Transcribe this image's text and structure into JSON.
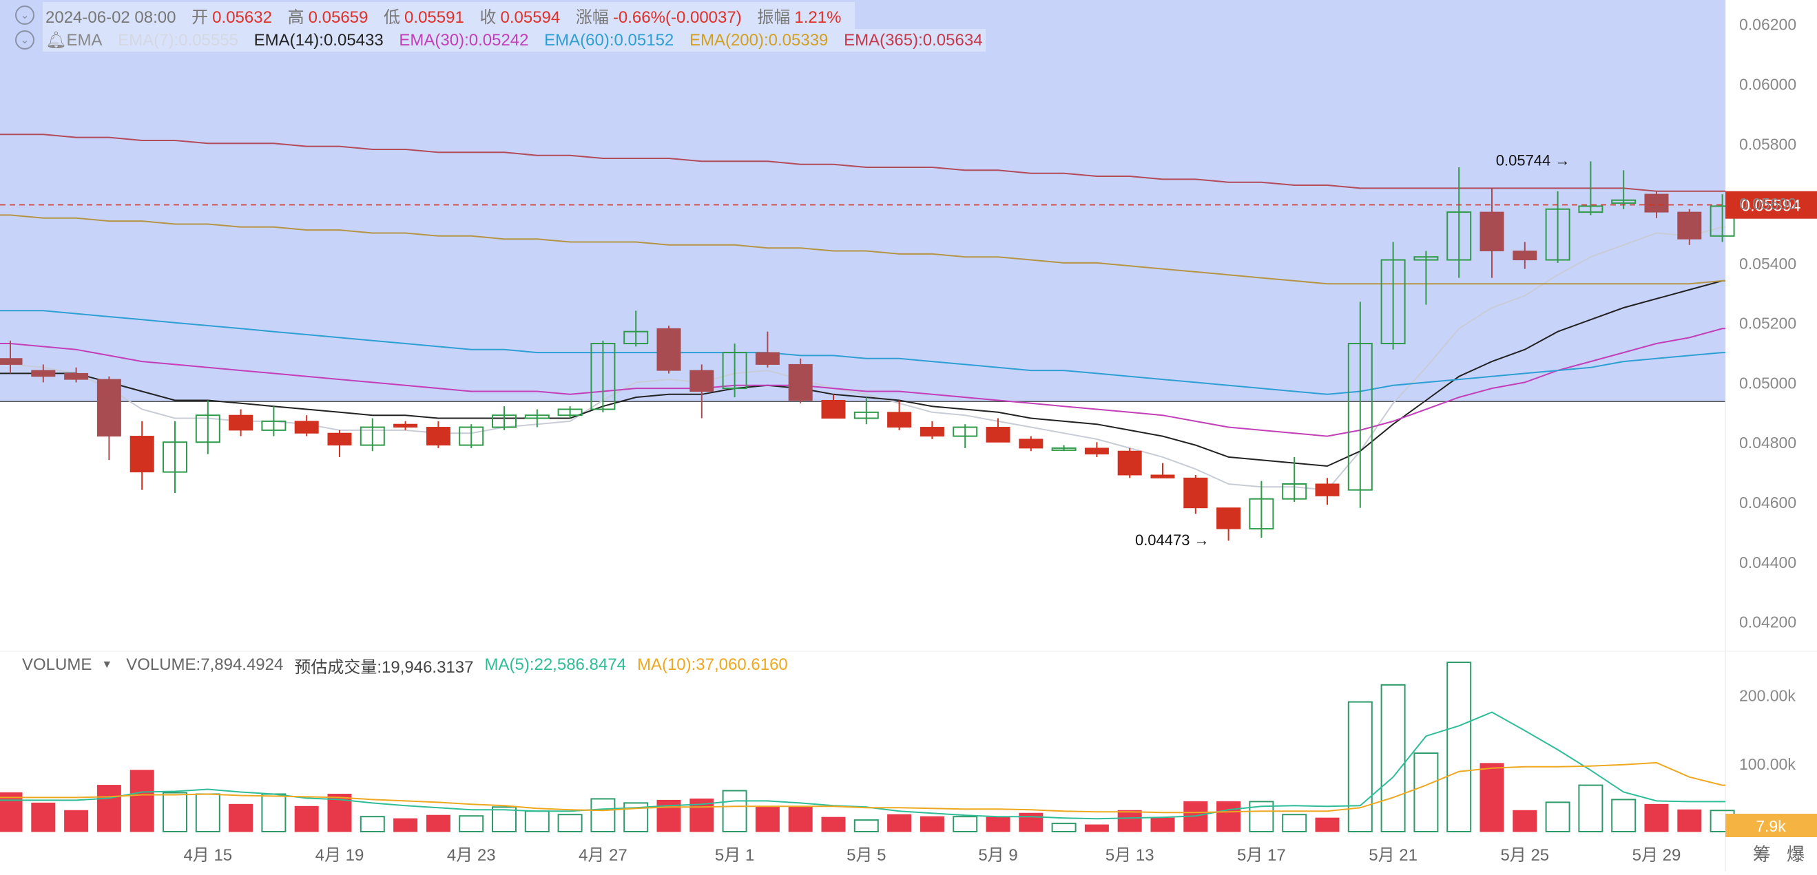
{
  "legend": {
    "date": "2024-06-02 08:00",
    "open_label": "开",
    "open": "0.05632",
    "high_label": "高",
    "high": "0.05659",
    "low_label": "低",
    "low": "0.05591",
    "close_label": "收",
    "close": "0.05594",
    "change_label": "涨幅",
    "change": "-0.66%(-0.00037)",
    "amp_label": "振幅",
    "amp": "1.21%",
    "indicator": "EMA",
    "ema7": "EMA(7):0.05555",
    "ema14": "EMA(14):0.05433",
    "ema30": "EMA(30):0.05242",
    "ema60": "EMA(60):0.05152",
    "ema200": "EMA(200):0.05339",
    "ema365": "EMA(365):0.05634"
  },
  "volume_legend": {
    "name": "VOLUME",
    "volume": "VOLUME:7,894.4924",
    "estimate": "预估成交量:19,946.3137",
    "ma5": "MA(5):22,586.8474",
    "ma10": "MA(10):37,060.6160"
  },
  "corner_label": "筹 爆",
  "colors": {
    "up": "#2f9a4a",
    "down": "#d2311f",
    "down_muted": "#a84c52",
    "ema7": "#c8ccd6",
    "ema14": "#222222",
    "ema30": "#c23fb8",
    "ema60": "#2d9fd3",
    "ema200": "#b59545",
    "ema365": "#b24b5a",
    "vol_ma5": "#2fbd98",
    "vol_ma10": "#eea820",
    "highlight": "#c8d3fa",
    "price_tag": "#d2311f",
    "vol_tag": "#f5b342"
  },
  "chart_data": {
    "type": "candlestick",
    "price_axis": {
      "min": 0.041,
      "max": 0.0628,
      "ticks": [
        "0.06200",
        "0.06000",
        "0.05800",
        "0.05600",
        "0.05400",
        "0.05200",
        "0.05000",
        "0.04800",
        "0.04600",
        "0.04400",
        "0.04200"
      ]
    },
    "last_price": "0.05594",
    "highlight_band": {
      "from": 0.04936,
      "to": 0.0628
    },
    "high_annotation": {
      "label": "0.05744 →",
      "index": 48,
      "value": 0.05744
    },
    "low_annotation": {
      "label": "0.04473 →",
      "index": 37,
      "value": 0.04473
    },
    "x_labels": [
      {
        "index": 6,
        "label": "4月 15"
      },
      {
        "index": 10,
        "label": "4月 19"
      },
      {
        "index": 14,
        "label": "4月 23"
      },
      {
        "index": 18,
        "label": "4月 27"
      },
      {
        "index": 22,
        "label": "5月 1"
      },
      {
        "index": 26,
        "label": "5月 5"
      },
      {
        "index": 30,
        "label": "5月 9"
      },
      {
        "index": 34,
        "label": "5月 13"
      },
      {
        "index": 38,
        "label": "5月 17"
      },
      {
        "index": 42,
        "label": "5月 21"
      },
      {
        "index": 46,
        "label": "5月 25"
      },
      {
        "index": 50,
        "label": "5月 29"
      }
    ],
    "candles": [
      [
        0.0508,
        0.0514,
        0.0503,
        0.0506
      ],
      [
        0.0504,
        0.0506,
        0.05,
        0.0502
      ],
      [
        0.0503,
        0.0505,
        0.05,
        0.0501
      ],
      [
        0.0501,
        0.0502,
        0.0474,
        0.0482
      ],
      [
        0.0482,
        0.0487,
        0.0464,
        0.047
      ],
      [
        0.047,
        0.0487,
        0.0463,
        0.048
      ],
      [
        0.048,
        0.0494,
        0.0476,
        0.0489
      ],
      [
        0.0489,
        0.0491,
        0.0482,
        0.0484
      ],
      [
        0.0484,
        0.0492,
        0.0482,
        0.0487
      ],
      [
        0.0487,
        0.0489,
        0.0482,
        0.0483
      ],
      [
        0.0483,
        0.0484,
        0.0475,
        0.0479
      ],
      [
        0.0479,
        0.0488,
        0.0477,
        0.0485
      ],
      [
        0.0486,
        0.0487,
        0.0484,
        0.0485
      ],
      [
        0.0485,
        0.0487,
        0.0478,
        0.0479
      ],
      [
        0.0479,
        0.0486,
        0.0478,
        0.0485
      ],
      [
        0.0485,
        0.0492,
        0.0484,
        0.0489
      ],
      [
        0.0488,
        0.0491,
        0.0485,
        0.0489
      ],
      [
        0.0489,
        0.0492,
        0.0488,
        0.0491
      ],
      [
        0.0491,
        0.0514,
        0.049,
        0.0513
      ],
      [
        0.0513,
        0.0524,
        0.0512,
        0.0517
      ],
      [
        0.0518,
        0.0519,
        0.0503,
        0.0504
      ],
      [
        0.0504,
        0.0506,
        0.0488,
        0.0497
      ],
      [
        0.0498,
        0.0513,
        0.0495,
        0.051
      ],
      [
        0.051,
        0.0517,
        0.0505,
        0.0506
      ],
      [
        0.0506,
        0.0508,
        0.0493,
        0.0494
      ],
      [
        0.0494,
        0.0496,
        0.0488,
        0.0488
      ],
      [
        0.0488,
        0.0495,
        0.0486,
        0.049
      ],
      [
        0.049,
        0.0494,
        0.0484,
        0.0485
      ],
      [
        0.0485,
        0.0487,
        0.0481,
        0.0482
      ],
      [
        0.0482,
        0.0486,
        0.0478,
        0.0485
      ],
      [
        0.0485,
        0.0488,
        0.048,
        0.048
      ],
      [
        0.0481,
        0.0482,
        0.0477,
        0.0478
      ],
      [
        0.0478,
        0.0479,
        0.0477,
        0.0478
      ],
      [
        0.0478,
        0.048,
        0.0475,
        0.0476
      ],
      [
        0.0477,
        0.0478,
        0.0468,
        0.0469
      ],
      [
        0.0469,
        0.0473,
        0.0468,
        0.0468
      ],
      [
        0.0468,
        0.0469,
        0.0456,
        0.0458
      ],
      [
        0.0458,
        0.0458,
        0.0447,
        0.0451
      ],
      [
        0.0451,
        0.0467,
        0.0448,
        0.0461
      ],
      [
        0.0461,
        0.0475,
        0.046,
        0.0466
      ],
      [
        0.0466,
        0.0468,
        0.0459,
        0.0462
      ],
      [
        0.0464,
        0.0527,
        0.0458,
        0.0513
      ],
      [
        0.0513,
        0.0547,
        0.0511,
        0.0541
      ],
      [
        0.0541,
        0.0544,
        0.0526,
        0.0542
      ],
      [
        0.0541,
        0.0572,
        0.0535,
        0.0557
      ],
      [
        0.0557,
        0.0565,
        0.0535,
        0.0544
      ],
      [
        0.0544,
        0.0547,
        0.0538,
        0.0541
      ],
      [
        0.0541,
        0.0564,
        0.054,
        0.0558
      ],
      [
        0.0557,
        0.0574,
        0.0556,
        0.0559
      ],
      [
        0.056,
        0.0571,
        0.0558,
        0.0561
      ],
      [
        0.0563,
        0.0564,
        0.0555,
        0.0557
      ],
      [
        0.0557,
        0.0558,
        0.0546,
        0.0548
      ],
      [
        0.0549,
        0.0563,
        0.0547,
        0.0559
      ]
    ],
    "ema": {
      "ema7": [
        0.0506,
        0.0505,
        0.0503,
        0.0498,
        0.0491,
        0.0488,
        0.0488,
        0.0487,
        0.0487,
        0.0486,
        0.0484,
        0.0484,
        0.0484,
        0.0483,
        0.0483,
        0.0485,
        0.0486,
        0.0487,
        0.0494,
        0.05,
        0.0501,
        0.05,
        0.0503,
        0.0504,
        0.0501,
        0.0498,
        0.0496,
        0.0493,
        0.049,
        0.0489,
        0.0487,
        0.0485,
        0.0483,
        0.0481,
        0.0478,
        0.0475,
        0.0471,
        0.0466,
        0.0465,
        0.0465,
        0.0464,
        0.0477,
        0.0493,
        0.0505,
        0.0518,
        0.0525,
        0.0529,
        0.0536,
        0.0542,
        0.0546,
        0.055,
        0.0549,
        0.0552
      ],
      "ema14": [
        0.0503,
        0.0503,
        0.0503,
        0.05,
        0.0497,
        0.0494,
        0.0494,
        0.0493,
        0.0492,
        0.0491,
        0.049,
        0.0489,
        0.0489,
        0.0488,
        0.0488,
        0.0488,
        0.0488,
        0.0488,
        0.0492,
        0.0495,
        0.0496,
        0.0496,
        0.0498,
        0.0499,
        0.0498,
        0.0496,
        0.0495,
        0.0494,
        0.0492,
        0.0491,
        0.049,
        0.0488,
        0.0487,
        0.0486,
        0.0484,
        0.0482,
        0.0479,
        0.0475,
        0.0474,
        0.0473,
        0.0472,
        0.0477,
        0.0486,
        0.0494,
        0.0502,
        0.0507,
        0.0511,
        0.0517,
        0.0521,
        0.0525,
        0.0528,
        0.0531,
        0.0534
      ],
      "ema30": [
        0.0513,
        0.0512,
        0.0511,
        0.0509,
        0.0507,
        0.0506,
        0.0505,
        0.0504,
        0.0503,
        0.0502,
        0.0501,
        0.05,
        0.0499,
        0.0498,
        0.0497,
        0.0497,
        0.0497,
        0.0496,
        0.0497,
        0.0498,
        0.0498,
        0.0498,
        0.0499,
        0.0499,
        0.0499,
        0.0498,
        0.0497,
        0.0497,
        0.0496,
        0.0495,
        0.0494,
        0.0493,
        0.0492,
        0.0491,
        0.049,
        0.0489,
        0.0487,
        0.0485,
        0.0484,
        0.0483,
        0.0482,
        0.0484,
        0.0487,
        0.0491,
        0.0495,
        0.0498,
        0.05,
        0.0504,
        0.0507,
        0.051,
        0.0513,
        0.0515,
        0.0518
      ],
      "ema60": [
        0.0524,
        0.0524,
        0.0523,
        0.0522,
        0.0521,
        0.052,
        0.0519,
        0.0518,
        0.0517,
        0.0516,
        0.0515,
        0.0514,
        0.0513,
        0.0512,
        0.0511,
        0.0511,
        0.051,
        0.051,
        0.051,
        0.051,
        0.051,
        0.051,
        0.051,
        0.051,
        0.0509,
        0.0509,
        0.0508,
        0.0508,
        0.0507,
        0.0506,
        0.0505,
        0.0504,
        0.0504,
        0.0503,
        0.0502,
        0.0501,
        0.05,
        0.0499,
        0.0498,
        0.0497,
        0.0496,
        0.0497,
        0.0499,
        0.05,
        0.0501,
        0.0502,
        0.0503,
        0.0504,
        0.0505,
        0.0507,
        0.0508,
        0.0509,
        0.051
      ],
      "ema200": [
        0.0556,
        0.0555,
        0.0555,
        0.0554,
        0.0554,
        0.0553,
        0.0553,
        0.0552,
        0.0552,
        0.0551,
        0.0551,
        0.055,
        0.055,
        0.0549,
        0.0549,
        0.0548,
        0.0548,
        0.0547,
        0.0547,
        0.0547,
        0.0546,
        0.0546,
        0.0546,
        0.0545,
        0.0545,
        0.0544,
        0.0544,
        0.0543,
        0.0543,
        0.0542,
        0.0542,
        0.0541,
        0.054,
        0.054,
        0.0539,
        0.0538,
        0.0537,
        0.0536,
        0.0535,
        0.0534,
        0.0533,
        0.0533,
        0.0533,
        0.0533,
        0.0533,
        0.0533,
        0.0533,
        0.0533,
        0.0533,
        0.0533,
        0.0533,
        0.0533,
        0.0534
      ],
      "ema365": [
        0.0583,
        0.0583,
        0.0582,
        0.0582,
        0.0581,
        0.0581,
        0.058,
        0.058,
        0.058,
        0.0579,
        0.0579,
        0.0578,
        0.0578,
        0.0577,
        0.0577,
        0.0577,
        0.0576,
        0.0576,
        0.0575,
        0.0575,
        0.0575,
        0.0574,
        0.0574,
        0.0574,
        0.0573,
        0.0573,
        0.0572,
        0.0572,
        0.0572,
        0.0571,
        0.0571,
        0.057,
        0.057,
        0.0569,
        0.0569,
        0.0568,
        0.0568,
        0.0567,
        0.0567,
        0.0566,
        0.0566,
        0.0565,
        0.0565,
        0.0565,
        0.0565,
        0.0565,
        0.0565,
        0.0565,
        0.0565,
        0.0565,
        0.0564,
        0.0564,
        0.0564
      ]
    },
    "volume_axis": {
      "min": 0,
      "max": 235000,
      "ticks": [
        "200.00k",
        "100.00k"
      ]
    },
    "last_volume": "7.9k",
    "volumes": [
      57000,
      42000,
      31000,
      68000,
      90000,
      57000,
      55000,
      40000,
      55000,
      37000,
      55000,
      22000,
      19000,
      24000,
      23000,
      36000,
      30000,
      25000,
      48000,
      42000,
      46000,
      48000,
      60000,
      37000,
      36000,
      21000,
      17000,
      25000,
      22000,
      22000,
      21000,
      27000,
      12000,
      10000,
      31000,
      20000,
      44000,
      44000,
      44000,
      25000,
      20000,
      190000,
      215000,
      115000,
      248000,
      100000,
      31000,
      43000,
      68000,
      47000,
      40000,
      32000,
      31000
    ],
    "vol_ma5": [
      46000,
      46000,
      46000,
      49000,
      58000,
      59000,
      62000,
      58000,
      55000,
      49000,
      47000,
      42000,
      38000,
      35000,
      32000,
      32000,
      30000,
      30000,
      33000,
      35000,
      38000,
      40000,
      45000,
      45000,
      42000,
      38000,
      36000,
      30000,
      27000,
      24000,
      22000,
      22000,
      20000,
      19000,
      20000,
      21000,
      23000,
      32000,
      37000,
      38000,
      37000,
      38000,
      80000,
      140000,
      155000,
      175000,
      148000,
      120000,
      90000,
      58000,
      45000,
      44000,
      44000
    ],
    "vol_ma10": [
      50000,
      50000,
      50000,
      51000,
      54000,
      54000,
      55000,
      53000,
      52000,
      51000,
      50000,
      47000,
      45000,
      43000,
      40000,
      38000,
      34000,
      32000,
      31000,
      34000,
      36000,
      36000,
      37000,
      37000,
      37000,
      37000,
      35000,
      35000,
      34000,
      33000,
      33000,
      32000,
      30000,
      29000,
      29000,
      28000,
      28000,
      29000,
      30000,
      30000,
      30000,
      35000,
      50000,
      68000,
      88000,
      93000,
      95000,
      95000,
      96000,
      98000,
      101000,
      80000,
      68000
    ]
  }
}
